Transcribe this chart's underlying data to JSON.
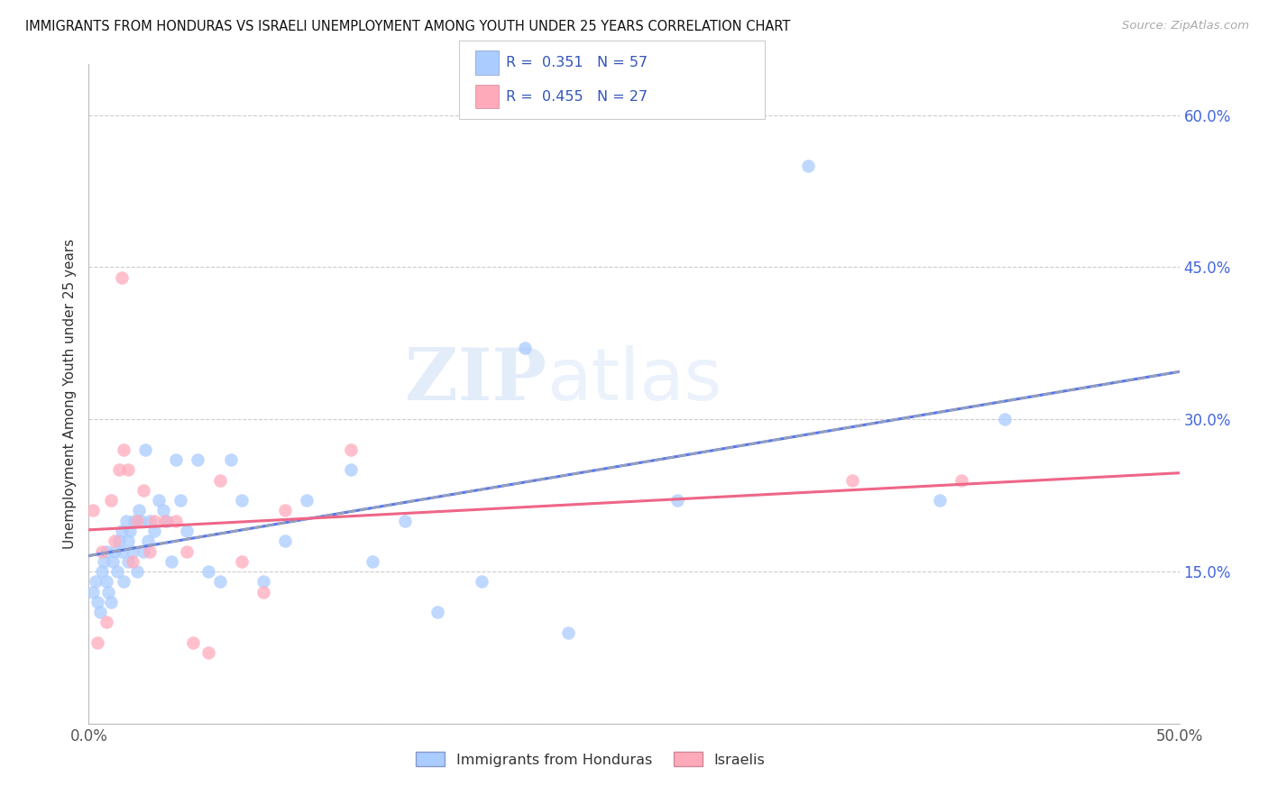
{
  "title": "IMMIGRANTS FROM HONDURAS VS ISRAELI UNEMPLOYMENT AMONG YOUTH UNDER 25 YEARS CORRELATION CHART",
  "source": "Source: ZipAtlas.com",
  "ylabel": "Unemployment Among Youth under 25 years",
  "legend_label1": "Immigrants from Honduras",
  "legend_label2": "Israelis",
  "r1": 0.351,
  "n1": 57,
  "r2": 0.455,
  "n2": 27,
  "xlim": [
    0.0,
    0.5
  ],
  "ylim": [
    0.0,
    0.65
  ],
  "xtick_pos": [
    0.0,
    0.1,
    0.2,
    0.3,
    0.4,
    0.5
  ],
  "xtick_labels": [
    "0.0%",
    "",
    "",
    "",
    "",
    "50.0%"
  ],
  "ytick_positions": [
    0.0,
    0.15,
    0.3,
    0.45,
    0.6
  ],
  "ytick_labels": [
    "",
    "15.0%",
    "30.0%",
    "45.0%",
    "60.0%"
  ],
  "color_blue": "#aaccff",
  "color_pink": "#ffaabb",
  "line_blue_solid": "#5577ee",
  "line_blue_dash": "#aaaaaa",
  "line_pink": "#ee6688",
  "watermark_zip": "ZIP",
  "watermark_atlas": "atlas",
  "blue_x": [
    0.002,
    0.003,
    0.004,
    0.005,
    0.006,
    0.007,
    0.008,
    0.008,
    0.009,
    0.01,
    0.011,
    0.012,
    0.013,
    0.014,
    0.015,
    0.015,
    0.016,
    0.017,
    0.018,
    0.018,
    0.019,
    0.02,
    0.021,
    0.022,
    0.023,
    0.024,
    0.025,
    0.026,
    0.027,
    0.028,
    0.03,
    0.032,
    0.034,
    0.036,
    0.038,
    0.04,
    0.042,
    0.045,
    0.05,
    0.055,
    0.06,
    0.065,
    0.07,
    0.08,
    0.09,
    0.1,
    0.12,
    0.13,
    0.145,
    0.16,
    0.18,
    0.2,
    0.22,
    0.27,
    0.33,
    0.39,
    0.42
  ],
  "blue_y": [
    0.13,
    0.14,
    0.12,
    0.11,
    0.15,
    0.16,
    0.14,
    0.17,
    0.13,
    0.12,
    0.16,
    0.17,
    0.15,
    0.18,
    0.17,
    0.19,
    0.14,
    0.2,
    0.18,
    0.16,
    0.19,
    0.17,
    0.2,
    0.15,
    0.21,
    0.2,
    0.17,
    0.27,
    0.18,
    0.2,
    0.19,
    0.22,
    0.21,
    0.2,
    0.16,
    0.26,
    0.22,
    0.19,
    0.26,
    0.15,
    0.14,
    0.26,
    0.22,
    0.14,
    0.18,
    0.22,
    0.25,
    0.16,
    0.2,
    0.11,
    0.14,
    0.37,
    0.09,
    0.22,
    0.55,
    0.22,
    0.3
  ],
  "pink_x": [
    0.002,
    0.004,
    0.006,
    0.008,
    0.01,
    0.012,
    0.014,
    0.015,
    0.016,
    0.018,
    0.02,
    0.022,
    0.025,
    0.028,
    0.03,
    0.035,
    0.04,
    0.045,
    0.048,
    0.055,
    0.06,
    0.07,
    0.08,
    0.09,
    0.12,
    0.35,
    0.4
  ],
  "pink_y": [
    0.21,
    0.08,
    0.17,
    0.1,
    0.22,
    0.18,
    0.25,
    0.44,
    0.27,
    0.25,
    0.16,
    0.2,
    0.23,
    0.17,
    0.2,
    0.2,
    0.2,
    0.17,
    0.08,
    0.07,
    0.24,
    0.16,
    0.13,
    0.21,
    0.27,
    0.24,
    0.24
  ]
}
